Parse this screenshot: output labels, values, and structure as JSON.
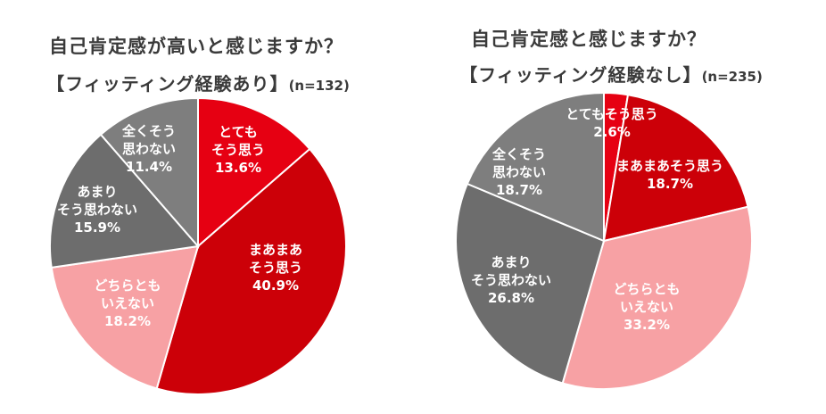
{
  "chart_data": [
    {
      "type": "pie",
      "title": "自己肯定感が高いと感じますか？",
      "subtitle": "【フィッティング経験あり】",
      "n_label": "(n=132)",
      "start": "12 o'clock, clockwise",
      "slices": [
        {
          "lines": [
            "とても",
            "そう思う"
          ],
          "value": 13.6,
          "value_label": "13.6%",
          "color": "#e60012"
        },
        {
          "lines": [
            "まあまあ",
            "そう思う"
          ],
          "value": 40.9,
          "value_label": "40.9%",
          "color": "#cc0008"
        },
        {
          "lines": [
            "どちらとも",
            "いえない"
          ],
          "value": 18.2,
          "value_label": "18.2%",
          "color": "#f7a1a4"
        },
        {
          "lines": [
            "あまり",
            "そう思わない"
          ],
          "value": 15.9,
          "value_label": "15.9%",
          "color": "#6d6d6d"
        },
        {
          "lines": [
            "全くそう",
            "思わない"
          ],
          "value": 11.4,
          "value_label": "11.4%",
          "color": "#7e7e7e"
        }
      ]
    },
    {
      "type": "pie",
      "title": "自己肯定感と感じますか？",
      "subtitle": "【フィッティング経験なし】",
      "n_label": "(n=235)",
      "start": "12 o'clock, clockwise",
      "slices": [
        {
          "lines": [
            "とてもそう思う"
          ],
          "value": 2.6,
          "value_label": "2.6%",
          "color": "#e60012"
        },
        {
          "lines": [
            "まあまあそう思う"
          ],
          "value": 18.7,
          "value_label": "18.7%",
          "color": "#cc0008"
        },
        {
          "lines": [
            "どちらとも",
            "いえない"
          ],
          "value": 33.2,
          "value_label": "33.2%",
          "color": "#f7a1a4"
        },
        {
          "lines": [
            "あまり",
            "そう思わない"
          ],
          "value": 26.8,
          "value_label": "26.8%",
          "color": "#6d6d6d"
        },
        {
          "lines": [
            "全くそう",
            "思わない"
          ],
          "value": 18.7,
          "value_label": "18.7%",
          "color": "#7e7e7e"
        }
      ]
    }
  ]
}
